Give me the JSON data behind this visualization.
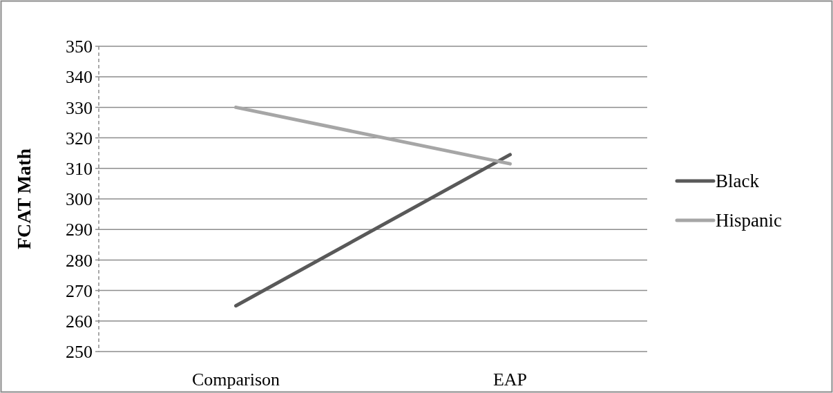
{
  "chart_data": {
    "type": "line",
    "ylabel": "FCAT Math",
    "categories": [
      "Comparison",
      "EAP"
    ],
    "series": [
      {
        "name": "Black",
        "color": "#595959",
        "values": [
          265,
          314.5
        ]
      },
      {
        "name": "Hispanic",
        "color": "#a6a6a6",
        "values": [
          330,
          311.5
        ]
      }
    ],
    "ylim": [
      250,
      350
    ],
    "yticks": [
      250,
      260,
      270,
      280,
      290,
      300,
      310,
      320,
      330,
      340,
      350
    ],
    "grid": "y",
    "legend": "right",
    "marker": "none",
    "line_style": "solid"
  }
}
